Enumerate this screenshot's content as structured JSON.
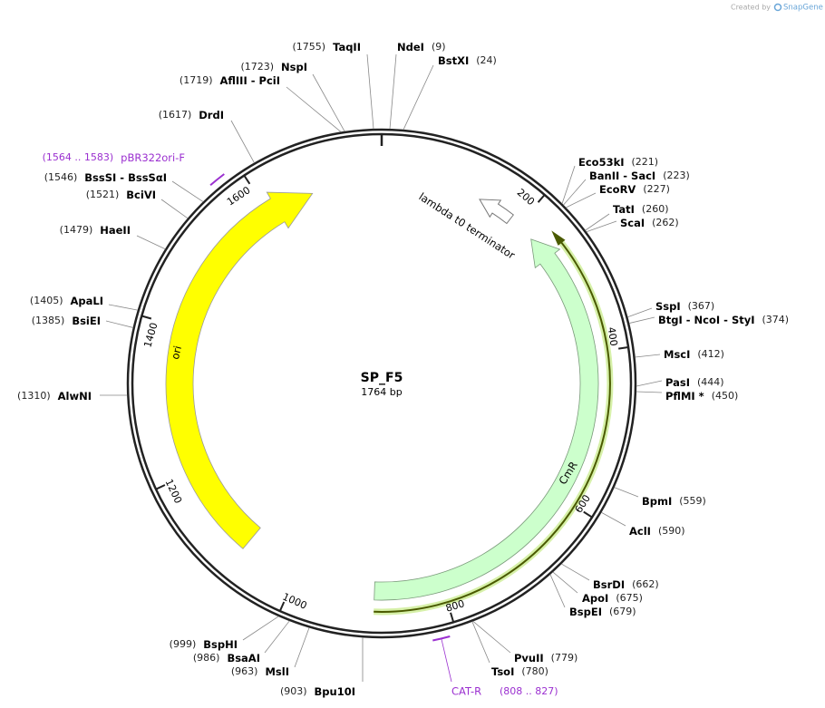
{
  "credit": {
    "prefix": "Created by",
    "brand": "SnapGene"
  },
  "plasmid": {
    "name": "SP_F5",
    "length": 1764,
    "length_label": "1764 bp",
    "ticks": [
      200,
      400,
      600,
      800,
      1000,
      1200,
      1400,
      1600
    ]
  },
  "features": [
    {
      "name": "ori"
    },
    {
      "name": "CmR"
    },
    {
      "name": "lambda t0 terminator"
    }
  ],
  "primers": [
    {
      "name": "pBR322ori-F",
      "range_label": "(1564 .. 1583)",
      "start": 1564,
      "end": 1583
    },
    {
      "name": "CAT-R",
      "range_label": "(808 .. 827)",
      "start": 808,
      "end": 827
    }
  ],
  "enzymes": [
    {
      "name": "TaqII",
      "position": 1755,
      "position_label": "(1755)"
    },
    {
      "name": "NdeI",
      "position": 9,
      "position_label": "(9)"
    },
    {
      "name": "BstXI",
      "position": 24,
      "position_label": "(24)"
    },
    {
      "name": "NspI",
      "position": 1723,
      "position_label": "(1723)"
    },
    {
      "name": "AflIII - PciI",
      "position": 1719,
      "position_label": "(1719)"
    },
    {
      "name": "DrdI",
      "position": 1617,
      "position_label": "(1617)"
    },
    {
      "name": "BssSI - BssSαI",
      "position": 1546,
      "position_label": "(1546)"
    },
    {
      "name": "BciVI",
      "position": 1521,
      "position_label": "(1521)"
    },
    {
      "name": "HaeII",
      "position": 1479,
      "position_label": "(1479)"
    },
    {
      "name": "ApaLI",
      "position": 1405,
      "position_label": "(1405)"
    },
    {
      "name": "BsiEI",
      "position": 1385,
      "position_label": "(1385)"
    },
    {
      "name": "AlwNI",
      "position": 1310,
      "position_label": "(1310)"
    },
    {
      "name": "BspHI",
      "position": 999,
      "position_label": "(999)"
    },
    {
      "name": "BsaAI",
      "position": 986,
      "position_label": "(986)"
    },
    {
      "name": "MslI",
      "position": 963,
      "position_label": "(963)"
    },
    {
      "name": "Bpu10I",
      "position": 903,
      "position_label": "(903)"
    },
    {
      "name": "TsoI",
      "position": 780,
      "position_label": "(780)"
    },
    {
      "name": "PvuII",
      "position": 779,
      "position_label": "(779)"
    },
    {
      "name": "BspEI",
      "position": 679,
      "position_label": "(679)"
    },
    {
      "name": "ApoI",
      "position": 675,
      "position_label": "(675)"
    },
    {
      "name": "BsrDI",
      "position": 662,
      "position_label": "(662)"
    },
    {
      "name": "AclI",
      "position": 590,
      "position_label": "(590)"
    },
    {
      "name": "BpmI",
      "position": 559,
      "position_label": "(559)"
    },
    {
      "name": "PflMI *",
      "position": 450,
      "position_label": "(450)"
    },
    {
      "name": "PasI",
      "position": 444,
      "position_label": "(444)"
    },
    {
      "name": "MscI",
      "position": 412,
      "position_label": "(412)"
    },
    {
      "name": "BtgI - NcoI - StyI",
      "position": 374,
      "position_label": "(374)"
    },
    {
      "name": "SspI",
      "position": 367,
      "position_label": "(367)"
    },
    {
      "name": "ScaI",
      "position": 262,
      "position_label": "(262)"
    },
    {
      "name": "TatI",
      "position": 260,
      "position_label": "(260)"
    },
    {
      "name": "EcoRV",
      "position": 227,
      "position_label": "(227)"
    },
    {
      "name": "BanII - SacI",
      "position": 223,
      "position_label": "(223)"
    },
    {
      "name": "Eco53kI",
      "position": 221,
      "position_label": "(221)"
    }
  ]
}
